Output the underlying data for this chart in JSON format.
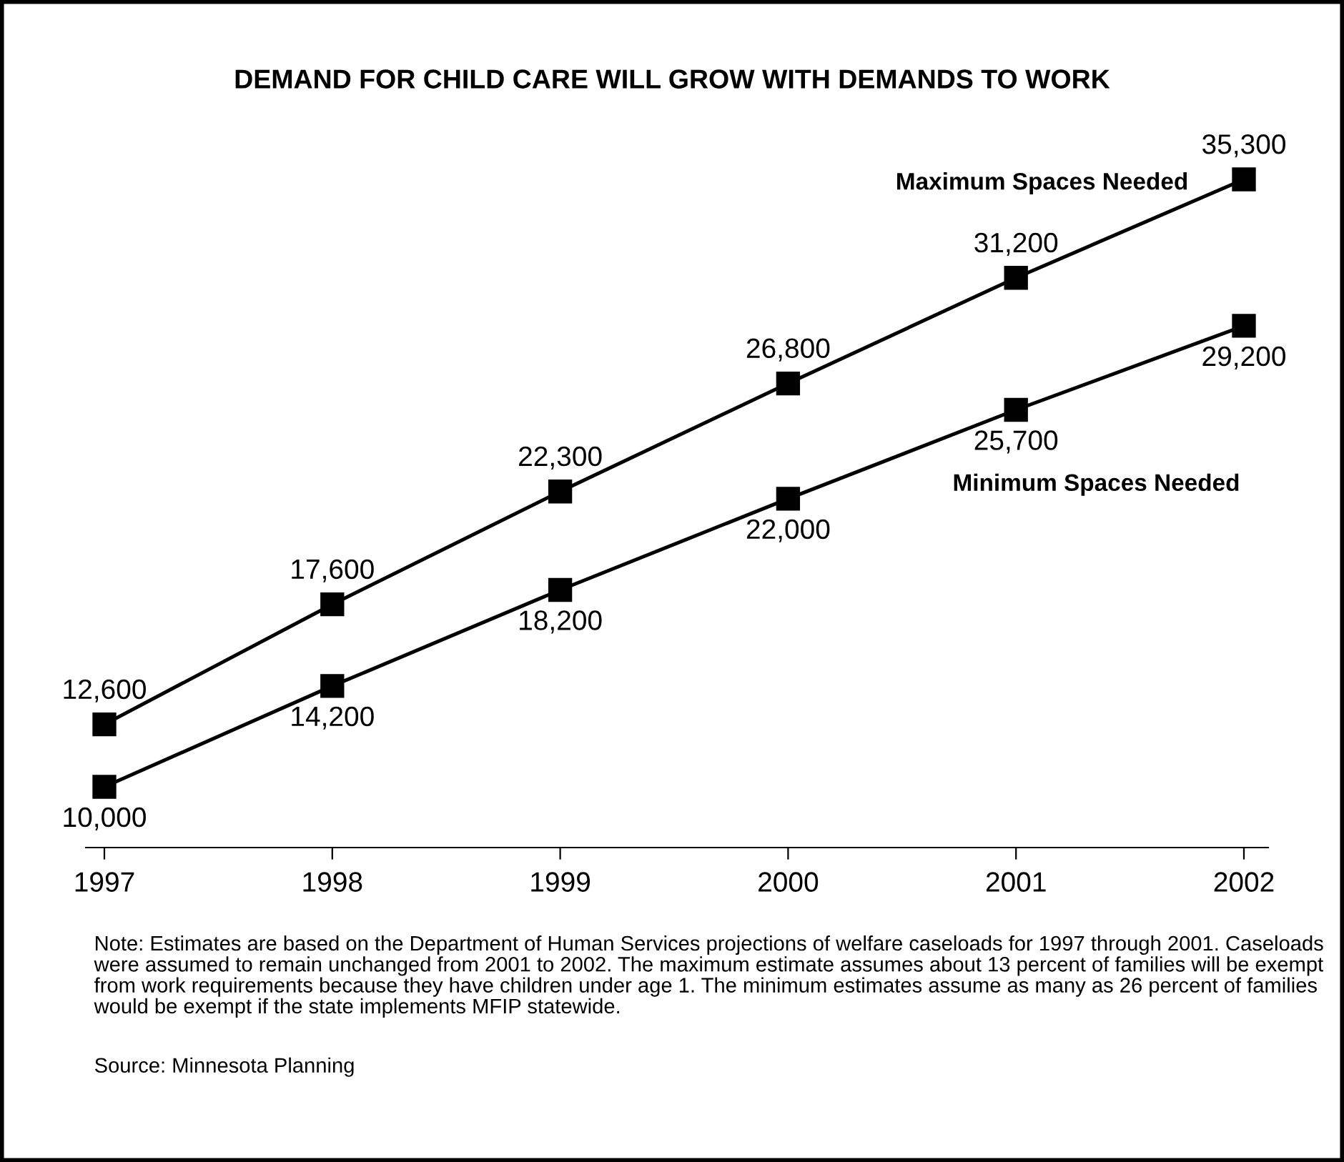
{
  "chart_data": {
    "type": "line",
    "title": "DEMAND FOR CHILD CARE WILL GROW WITH DEMANDS TO WORK",
    "categories": [
      "1997",
      "1998",
      "1999",
      "2000",
      "2001",
      "2002"
    ],
    "series": [
      {
        "name": "Maximum Spaces Needed",
        "color": "#000000",
        "values": [
          12600,
          17600,
          22300,
          26800,
          31200,
          35300
        ],
        "value_labels": [
          "12,600",
          "17,600",
          "22,300",
          "26,800",
          "31,200",
          "35,300"
        ]
      },
      {
        "name": "Minimum Spaces Needed",
        "color": "#000000",
        "values": [
          10000,
          14200,
          18200,
          22000,
          25700,
          29200
        ],
        "value_labels": [
          "10,000",
          "14,200",
          "18,200",
          "22,000",
          "25,700",
          "29,200"
        ]
      }
    ],
    "tick_labels": "x",
    "marker": "square",
    "line_style": "solid",
    "annotations": [
      "Note: Estimates are based on the Department of Human Services projections of welfare caseloads for 1997 through 2001. Caseloads were assumed to remain unchanged from 2001 to 2002. The maximum estimate assumes about 13 percent of families will be exempt from work requirements because they have children under age 1. The minimum estimates assume as many as 26 percent of families would be exempt if the state implements MFIP statewide.",
      "Source: Minnesota Planning"
    ]
  }
}
